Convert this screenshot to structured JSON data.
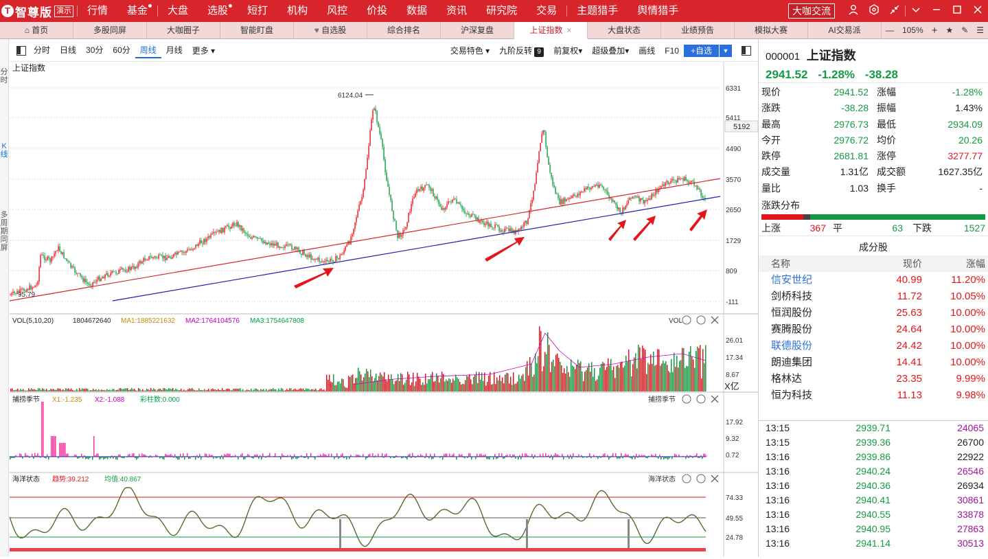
{
  "app": {
    "logo_text": "智尊版",
    "logo_badge": "演示",
    "top_nav": [
      {
        "label": "行情",
        "dot": false
      },
      {
        "label": "基金",
        "dot": true
      },
      {
        "label": "大盘",
        "dot": false
      },
      {
        "label": "选股",
        "dot": true
      },
      {
        "label": "短打",
        "dot": false
      },
      {
        "label": "机构",
        "dot": false
      },
      {
        "label": "风控",
        "dot": false
      },
      {
        "label": "价投",
        "dot": false
      },
      {
        "label": "数据",
        "dot": false
      },
      {
        "label": "资讯",
        "dot": false
      },
      {
        "label": "研究院",
        "dot": false
      },
      {
        "label": "交易",
        "dot": false
      },
      {
        "label": "主题猎手",
        "dot": false
      },
      {
        "label": "舆情猎手",
        "dot": false
      }
    ],
    "dk_button": "大咖交流"
  },
  "tabs": [
    {
      "label": "首页",
      "active": false,
      "icon": "home-icon"
    },
    {
      "label": "多股同屏",
      "active": false
    },
    {
      "label": "大咖圈子",
      "active": false
    },
    {
      "label": "智能盯盘",
      "active": false
    },
    {
      "label": "自选股",
      "active": false,
      "icon": "heart-icon"
    },
    {
      "label": "综合排名",
      "active": false
    },
    {
      "label": "沪深复盘",
      "active": false
    },
    {
      "label": "上证指数",
      "active": true
    },
    {
      "label": "大盘状态",
      "active": false
    },
    {
      "label": "业绩预告",
      "active": false
    },
    {
      "label": "模拟大赛",
      "active": false
    },
    {
      "label": "AI交易派",
      "active": false
    }
  ],
  "zoom": "105%",
  "left_strip": [
    "分时",
    "K线",
    "多周期同屏"
  ],
  "toolbar": {
    "periods": [
      {
        "label": "分时",
        "active": false
      },
      {
        "label": "日线",
        "active": false
      },
      {
        "label": "30分",
        "active": false
      },
      {
        "label": "60分",
        "active": false
      },
      {
        "label": "周线",
        "active": true
      },
      {
        "label": "月线",
        "active": false
      }
    ],
    "more": "更多",
    "right": [
      "交易特色",
      "九阶反转",
      "前复权",
      "超级叠加",
      "画线",
      "F10"
    ],
    "badge": "9",
    "add_button": "+自选"
  },
  "chart": {
    "title": "上证指数",
    "price_axis": [
      "6331",
      "5411",
      "4490",
      "3570",
      "2650",
      "1729",
      "809",
      "-111"
    ],
    "current_tag": "5192",
    "peak_label": "6124.04",
    "low_label": "95.79",
    "vol_header": {
      "name": "VOL(5,10,20)",
      "value": "1804672640",
      "ma1": "MA1:1885221632",
      "ma2": "MA2:1764104576",
      "ma3": "MA3:1754647808"
    },
    "vol_axis": [
      "26.01",
      "17.34",
      "8.67"
    ],
    "vol_unit": "X亿",
    "vol_tag": "VOL",
    "season_header": {
      "name": "捕捞季节",
      "x1": "X1:-1.235",
      "x2": "X2:-1.088",
      "cz": "彩柱数:0.000"
    },
    "season_axis": [
      "17.92",
      "9.32",
      "0.72"
    ],
    "season_tag": "捕捞季节",
    "ocean_header": {
      "name": "海洋状态",
      "trend": "趋势:39.212",
      "avg": "均值:40.867"
    },
    "ocean_axis": [
      "74.33",
      "49.55",
      "24.78"
    ],
    "ocean_tag": "海洋状态"
  },
  "quote": {
    "code": "000001",
    "name": "上证指数",
    "price": "2941.52",
    "pct": "-1.28%",
    "change": "-38.28",
    "rows": [
      {
        "l": "现价",
        "v": "2941.52",
        "vc": "green",
        "l2": "涨幅",
        "v2": "-1.28%",
        "v2c": "green"
      },
      {
        "l": "涨跌",
        "v": "-38.28",
        "vc": "green",
        "l2": "振幅",
        "v2": "1.43%",
        "v2c": "black"
      },
      {
        "l": "最高",
        "v": "2976.73",
        "vc": "green",
        "l2": "最低",
        "v2": "2934.09",
        "v2c": "green"
      },
      {
        "l": "今开",
        "v": "2976.72",
        "vc": "green",
        "l2": "均价",
        "v2": "20.26",
        "v2c": "green"
      },
      {
        "l": "跌停",
        "v": "2681.81",
        "vc": "green",
        "l2": "涨停",
        "v2": "3277.77",
        "v2c": "red"
      },
      {
        "l": "成交量",
        "v": "1.31亿",
        "vc": "black",
        "l2": "成交额",
        "v2": "1627.35亿",
        "v2c": "black"
      },
      {
        "l": "量比",
        "v": "1.03",
        "vc": "black",
        "l2": "换手",
        "v2": "-",
        "v2c": "black"
      }
    ],
    "dist_title": "涨跌分布",
    "dist": {
      "up_label": "上涨",
      "up": "367",
      "flat_label": "平",
      "flat": "63",
      "down_label": "下跌",
      "down": "1527"
    },
    "components_title": "成分股",
    "comp_head": [
      "名称",
      "现价",
      "涨幅"
    ],
    "components": [
      {
        "name": "信安世纪",
        "price": "40.99",
        "pct": "11.20%",
        "blue": true
      },
      {
        "name": "剑桥科技",
        "price": "11.72",
        "pct": "10.05%",
        "blue": false
      },
      {
        "name": "恒润股份",
        "price": "25.63",
        "pct": "10.00%",
        "blue": false
      },
      {
        "name": "赛腾股份",
        "price": "24.64",
        "pct": "10.00%",
        "blue": false
      },
      {
        "name": "联德股份",
        "price": "24.42",
        "pct": "10.00%",
        "blue": true
      },
      {
        "name": "朗迪集团",
        "price": "14.41",
        "pct": "10.00%",
        "blue": false
      },
      {
        "name": "格林达",
        "price": "23.35",
        "pct": "9.99%",
        "blue": false
      },
      {
        "name": "恒为科技",
        "price": "11.13",
        "pct": "9.98%",
        "blue": false
      }
    ],
    "ticks": [
      {
        "time": "13:15",
        "price": "2939.71",
        "vol": "24065",
        "vc": "purple"
      },
      {
        "time": "13:15",
        "price": "2939.36",
        "vol": "26700",
        "vc": "black"
      },
      {
        "time": "13:16",
        "price": "2939.86",
        "vol": "22922",
        "vc": "black"
      },
      {
        "time": "13:16",
        "price": "2940.24",
        "vol": "26546",
        "vc": "purple"
      },
      {
        "time": "13:16",
        "price": "2940.36",
        "vol": "26934",
        "vc": "black"
      },
      {
        "time": "13:16",
        "price": "2940.41",
        "vol": "30861",
        "vc": "purple"
      },
      {
        "time": "13:16",
        "price": "2940.55",
        "vol": "33878",
        "vc": "purple"
      },
      {
        "time": "13:16",
        "price": "2940.95",
        "vol": "27863",
        "vc": "purple"
      },
      {
        "time": "13:16",
        "price": "2941.14",
        "vol": "30513",
        "vc": "purple"
      }
    ]
  },
  "colors": {
    "brand": "#d8242b",
    "up": "#e3161b",
    "down": "#139a43",
    "accent": "#2a6fe0"
  }
}
